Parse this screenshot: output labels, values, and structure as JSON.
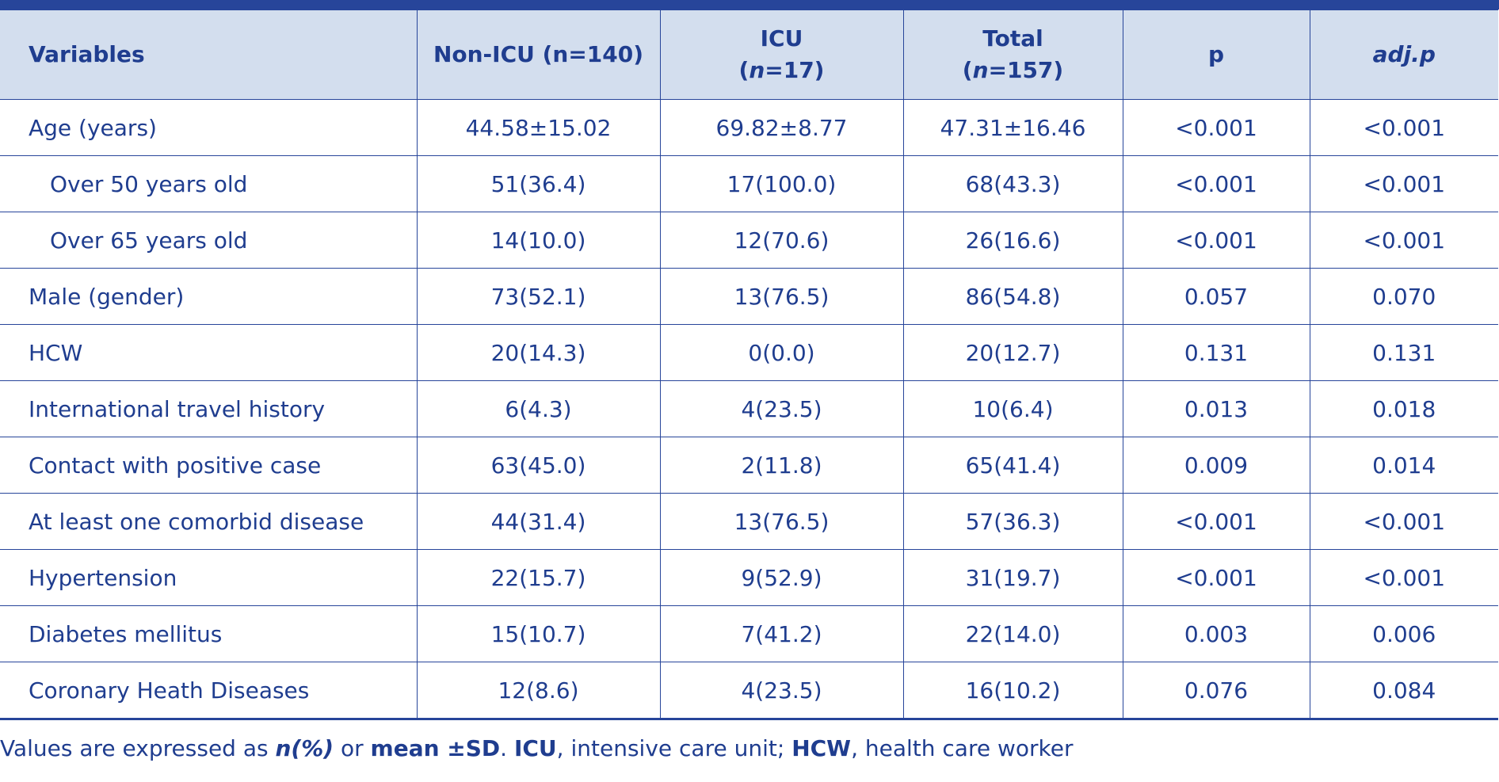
{
  "table": {
    "headers": {
      "variables": "Variables",
      "non_icu": "Non-ICU (n=140)",
      "icu_line1": "ICU",
      "icu_line2_open": "(",
      "icu_line2_n": "n",
      "icu_line2_rest": "=17)",
      "total_line1": "Total",
      "total_line2_open": "(",
      "total_line2_n": "n",
      "total_line2_rest": "=157)",
      "p": "p",
      "adj_p": "adj.p"
    },
    "rows": [
      {
        "label": "Age (years)",
        "non_icu": "44.58±15.02",
        "icu": "69.82±8.77",
        "total": "47.31±16.46",
        "p": "<0.001",
        "adj_p": "<0.001"
      },
      {
        "label": "Over 50 years old",
        "non_icu": "51(36.4)",
        "icu": "17(100.0)",
        "total": "68(43.3)",
        "p": "<0.001",
        "adj_p": "<0.001"
      },
      {
        "label": "Over 65 years old",
        "non_icu": "14(10.0)",
        "icu": "12(70.6)",
        "total": "26(16.6)",
        "p": "<0.001",
        "adj_p": "<0.001"
      },
      {
        "label": "Male (gender)",
        "non_icu": "73(52.1)",
        "icu": "13(76.5)",
        "total": "86(54.8)",
        "p": "0.057",
        "adj_p": "0.070"
      },
      {
        "label": "HCW",
        "non_icu": "20(14.3)",
        "icu": "0(0.0)",
        "total": "20(12.7)",
        "p": "0.131",
        "adj_p": "0.131"
      },
      {
        "label": "International travel history",
        "non_icu": "6(4.3)",
        "icu": "4(23.5)",
        "total": "10(6.4)",
        "p": "0.013",
        "adj_p": "0.018"
      },
      {
        "label": "Contact with positive case",
        "non_icu": "63(45.0)",
        "icu": "2(11.8)",
        "total": "65(41.4)",
        "p": "0.009",
        "adj_p": "0.014"
      },
      {
        "label": "At least one comorbid disease",
        "non_icu": "44(31.4)",
        "icu": "13(76.5)",
        "total": "57(36.3)",
        "p": "<0.001",
        "adj_p": "<0.001"
      },
      {
        "label": "Hypertension",
        "non_icu": "22(15.7)",
        "icu": "9(52.9)",
        "total": "31(19.7)",
        "p": "<0.001",
        "adj_p": "<0.001"
      },
      {
        "label": "Diabetes mellitus",
        "non_icu": "15(10.7)",
        "icu": "7(41.2)",
        "total": "22(14.0)",
        "p": "0.003",
        "adj_p": "0.006"
      },
      {
        "label": "Coronary Heath Diseases",
        "non_icu": "12(8.6)",
        "icu": "4(23.5)",
        "total": "16(10.2)",
        "p": "0.076",
        "adj_p": "0.084"
      }
    ]
  },
  "footnote": {
    "part1": "Values are expressed as ",
    "part2": "n(%)",
    "part3": " or ",
    "part4": "mean ±SD",
    "part5": ". ",
    "part6": "ICU",
    "part7": ", intensive care unit; ",
    "part8": "HCW",
    "part9": ", health care worker"
  },
  "colors": {
    "accent": "#27459a",
    "text": "#1f3d8f",
    "header_bg": "#d3deee"
  }
}
